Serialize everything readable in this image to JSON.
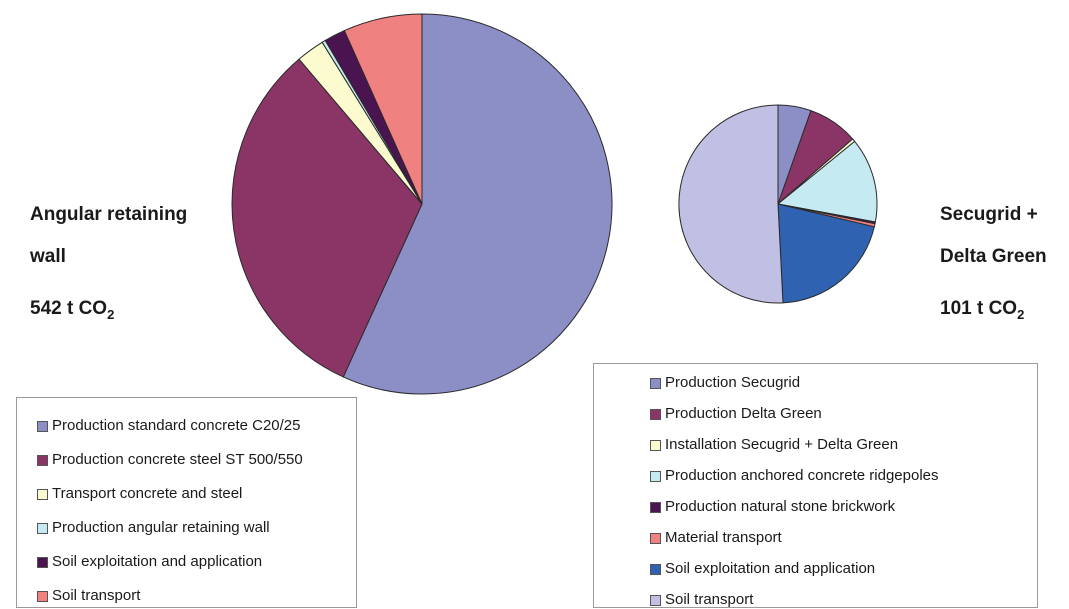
{
  "chart_data": [
    {
      "type": "pie",
      "label_lines": [
        "Angular retaining",
        "wall"
      ],
      "total": {
        "value": "542 t CO",
        "sub": "2"
      },
      "start_angle_deg": -90,
      "direction": "clockwise",
      "slices": [
        {
          "name": "Production standard concrete C20/25",
          "value": 56.8,
          "color": "#8c8fc6"
        },
        {
          "name": "Production concrete steel ST 500/550",
          "value": 32.0,
          "color": "#8b3567"
        },
        {
          "name": "Transport concrete and steel",
          "value": 2.4,
          "color": "#fbfbcf"
        },
        {
          "name": "Production angular retaining wall",
          "value": 0.3,
          "color": "#c6eaf1"
        },
        {
          "name": "Soil exploitation and application",
          "value": 1.8,
          "color": "#4a1450"
        },
        {
          "name": "Soil transport",
          "value": 6.7,
          "color": "#f08181"
        }
      ],
      "legend_position": "bottom-left"
    },
    {
      "type": "pie",
      "label_lines": [
        "Secugrid +",
        "Delta Green"
      ],
      "total": {
        "value": "101 t CO",
        "sub": "2"
      },
      "start_angle_deg": -90,
      "direction": "clockwise",
      "slices": [
        {
          "name": "Production Secugrid",
          "value": 5.4,
          "color": "#8c8fc6"
        },
        {
          "name": "Production Delta Green",
          "value": 8.2,
          "color": "#8b3567"
        },
        {
          "name": "Installation Secugrid + Delta Green",
          "value": 0.5,
          "color": "#fbfbcf"
        },
        {
          "name": "Production anchored concrete ridgepoles",
          "value": 13.8,
          "color": "#c6eaf1"
        },
        {
          "name": "Production natural stone brickwork",
          "value": 0.3,
          "color": "#4a1450"
        },
        {
          "name": "Material transport",
          "value": 0.5,
          "color": "#f08181"
        },
        {
          "name": "Soil exploitation and application",
          "value": 20.5,
          "color": "#2f62b0"
        },
        {
          "name": "Soil transport",
          "value": 50.8,
          "color": "#c0c0e4"
        }
      ],
      "legend_position": "bottom-right"
    }
  ]
}
